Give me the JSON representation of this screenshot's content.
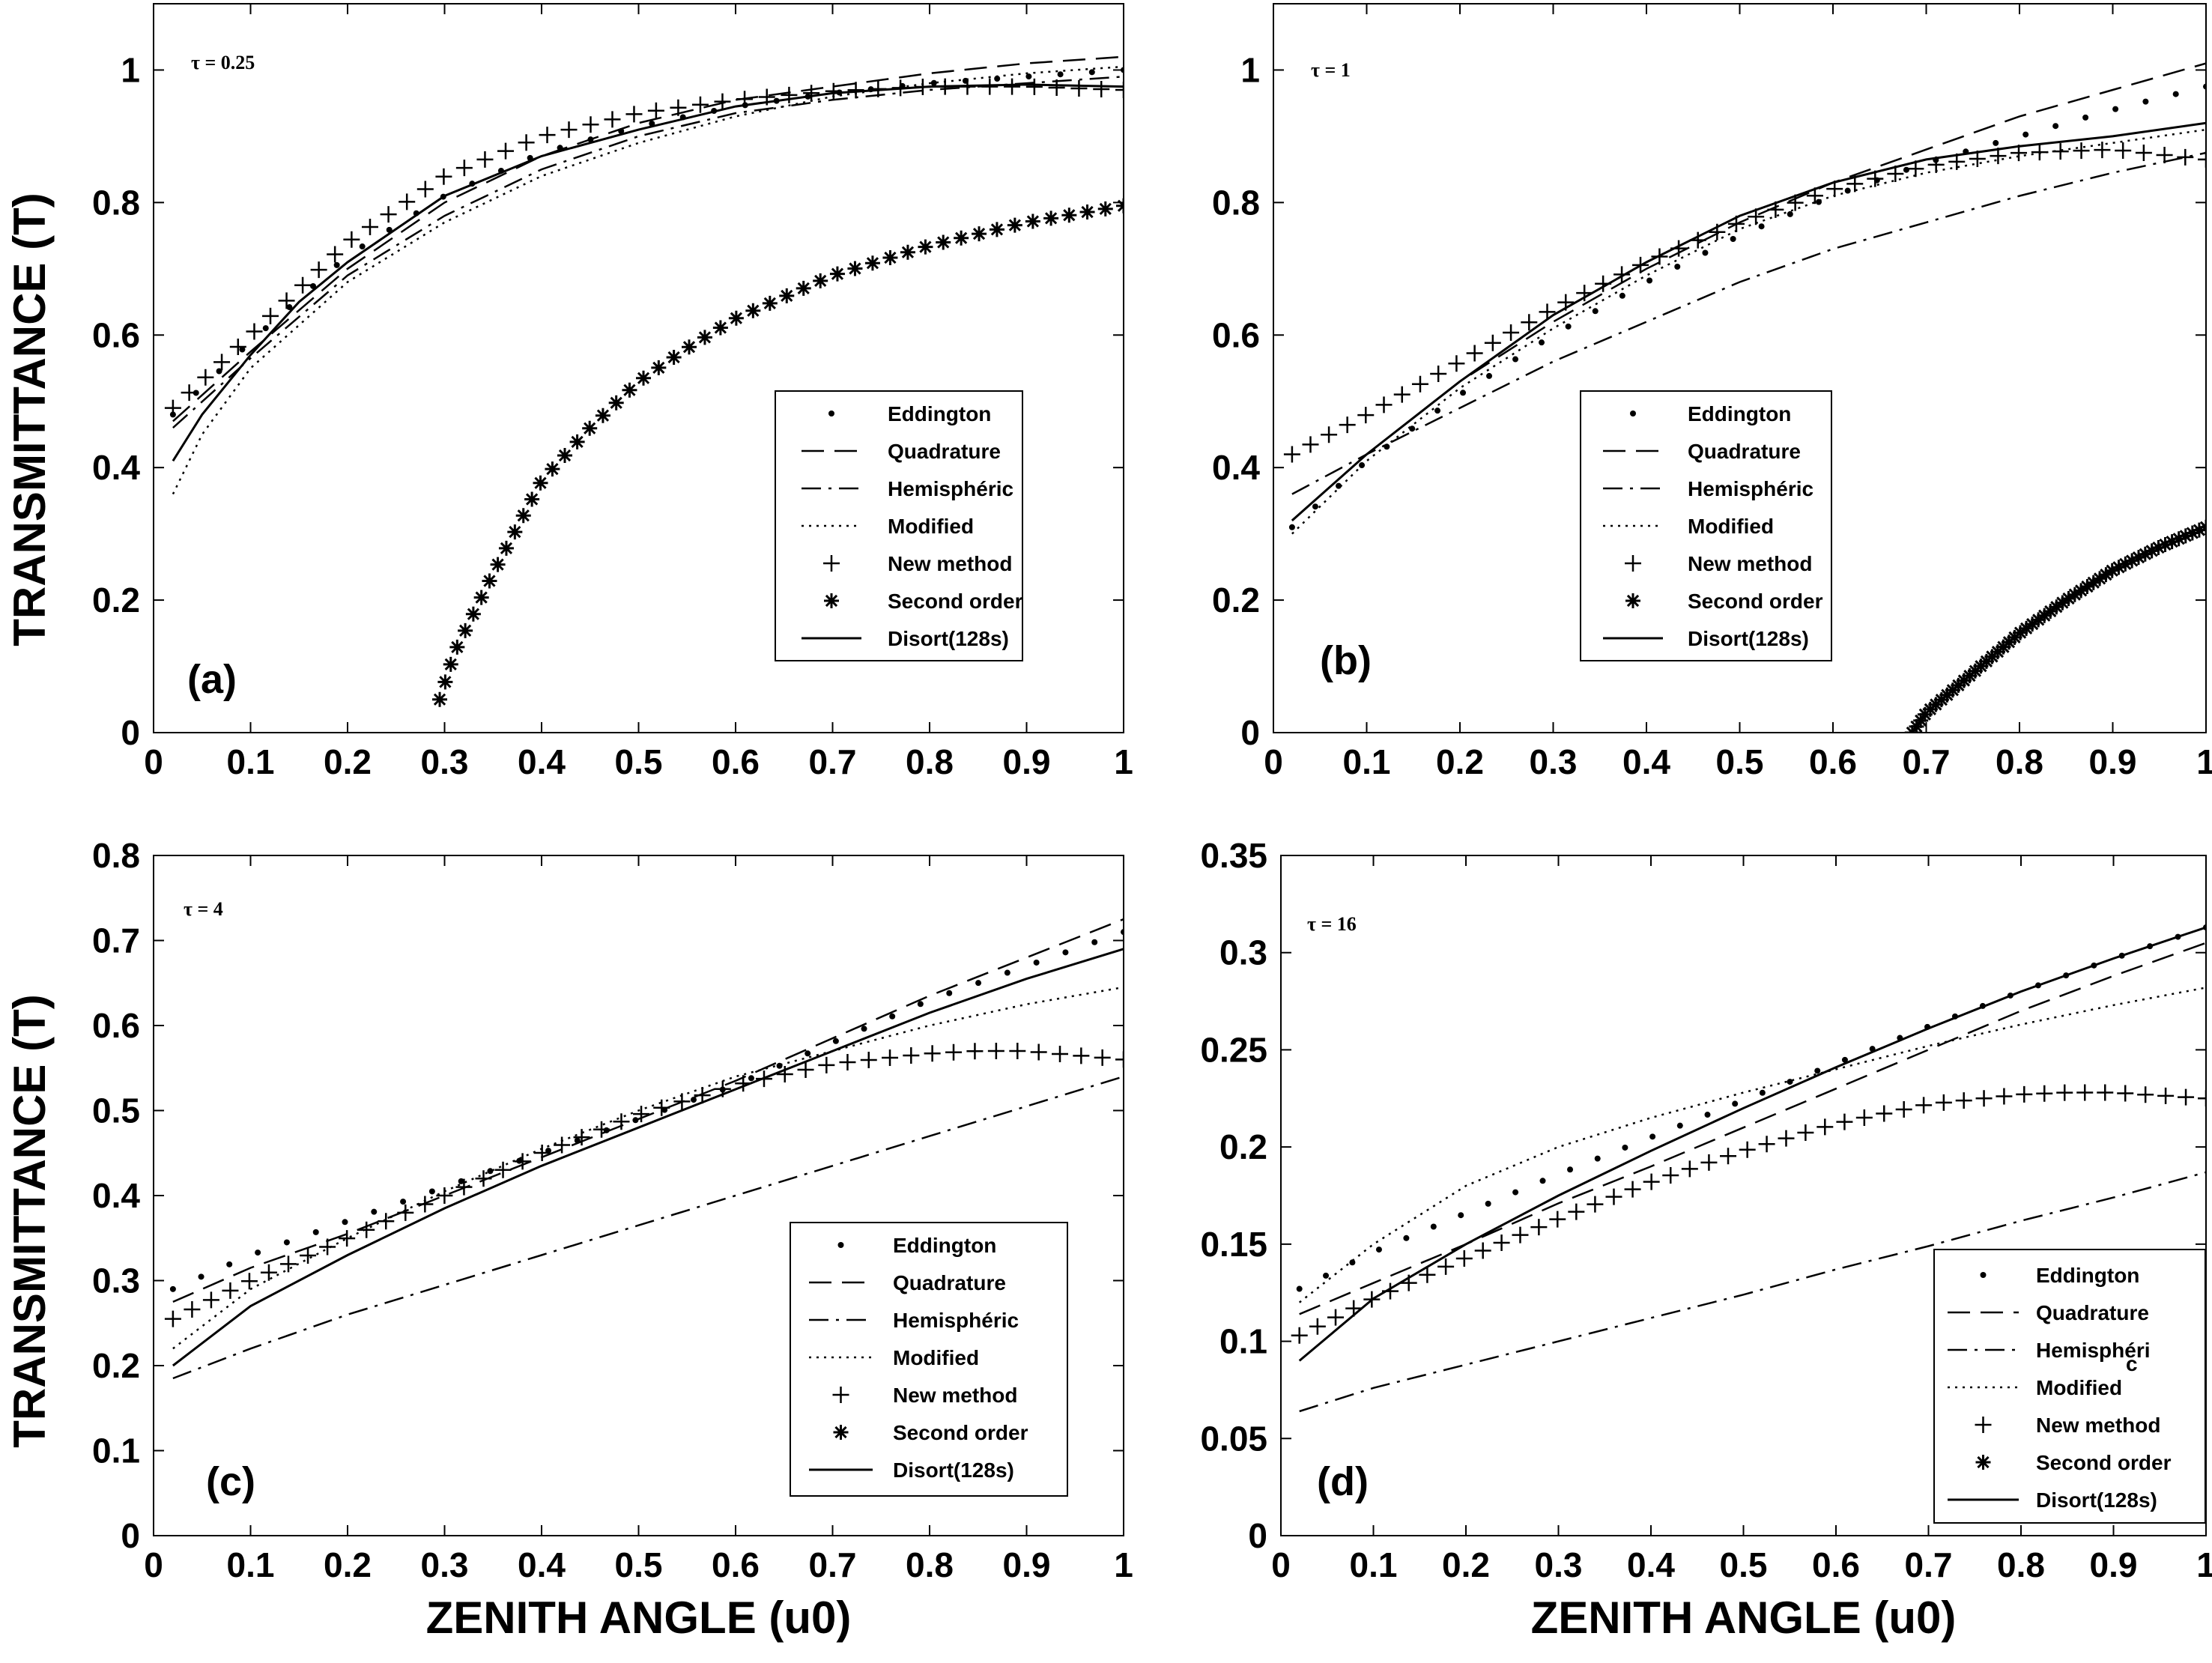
{
  "styles": {
    "Eddington": "dot",
    "Quadrature": "dash",
    "Hemisphéric": "dashdot",
    "Modified": "dotted",
    "New method": "plus",
    "Second order": "asterisk",
    "Disort(128s)": "solid"
  },
  "chart_data": [
    {
      "type": "line",
      "panel": "(a)",
      "tau_text": "τ = 0.25",
      "xlabel": "ZENITH ANGLE (u0)",
      "ylabel": "TRANSMITTANCE (T)",
      "xlim": [
        0,
        1
      ],
      "ylim": [
        0,
        1.1
      ],
      "xticks": [
        "0",
        "0.1",
        "0.2",
        "0.3",
        "0.4",
        "0.5",
        "0.6",
        "0.7",
        "0.8",
        "0.9",
        "1"
      ],
      "yticks": [
        "0",
        "0.2",
        "0.4",
        "0.6",
        "0.8",
        "1"
      ],
      "legend_placement": "right",
      "legend": [
        "Eddington",
        "Quadrature",
        "Hemisphéric",
        "Modified",
        "New method",
        "Second order",
        "Disort(128s)"
      ],
      "series": [
        {
          "name": "Eddington",
          "x": [
            0.02,
            0.1,
            0.2,
            0.3,
            0.4,
            0.5,
            0.6,
            0.7,
            0.8,
            0.9,
            1.0
          ],
          "y": [
            0.48,
            0.59,
            0.72,
            0.81,
            0.875,
            0.915,
            0.945,
            0.965,
            0.98,
            0.99,
            1.0
          ]
        },
        {
          "name": "Quadrature",
          "x": [
            0.02,
            0.1,
            0.2,
            0.3,
            0.4,
            0.5,
            0.6,
            0.7,
            0.8,
            0.9,
            1.0
          ],
          "y": [
            0.47,
            0.575,
            0.7,
            0.8,
            0.87,
            0.92,
            0.955,
            0.975,
            0.995,
            1.01,
            1.02
          ]
        },
        {
          "name": "Hemisphéric",
          "x": [
            0.02,
            0.1,
            0.2,
            0.3,
            0.4,
            0.5,
            0.6,
            0.7,
            0.8,
            0.9,
            1.0
          ],
          "y": [
            0.46,
            0.565,
            0.69,
            0.78,
            0.85,
            0.9,
            0.935,
            0.955,
            0.97,
            0.98,
            0.99
          ]
        },
        {
          "name": "Modified",
          "x": [
            0.02,
            0.05,
            0.1,
            0.2,
            0.3,
            0.4,
            0.5,
            0.6,
            0.7,
            0.8,
            0.9,
            1.0
          ],
          "y": [
            0.36,
            0.45,
            0.55,
            0.68,
            0.77,
            0.84,
            0.89,
            0.93,
            0.96,
            0.98,
            0.995,
            1.005
          ]
        },
        {
          "name": "New method",
          "x": [
            0.02,
            0.1,
            0.2,
            0.3,
            0.4,
            0.5,
            0.6,
            0.7,
            0.8,
            0.9,
            1.0
          ],
          "y": [
            0.49,
            0.6,
            0.74,
            0.84,
            0.9,
            0.935,
            0.955,
            0.968,
            0.975,
            0.975,
            0.97
          ]
        },
        {
          "name": "Second order",
          "x": [
            0.295,
            0.31,
            0.33,
            0.35,
            0.375,
            0.4,
            0.45,
            0.5,
            0.55,
            0.6,
            0.7,
            0.8,
            0.9,
            1.0
          ],
          "y": [
            0.05,
            0.12,
            0.18,
            0.24,
            0.31,
            0.38,
            0.46,
            0.53,
            0.58,
            0.625,
            0.69,
            0.735,
            0.77,
            0.795
          ]
        },
        {
          "name": "Disort(128s)",
          "x": [
            0.02,
            0.05,
            0.1,
            0.15,
            0.2,
            0.3,
            0.4,
            0.5,
            0.6,
            0.7,
            0.8,
            0.9,
            1.0
          ],
          "y": [
            0.41,
            0.48,
            0.57,
            0.65,
            0.71,
            0.81,
            0.87,
            0.91,
            0.945,
            0.965,
            0.975,
            0.978,
            0.975
          ]
        }
      ]
    },
    {
      "type": "line",
      "panel": "(b)",
      "tau_text": "τ = 1",
      "xlabel": "",
      "ylabel": "",
      "xlim": [
        0,
        1
      ],
      "ylim": [
        0,
        1.1
      ],
      "xticks": [
        "0",
        "0.1",
        "0.2",
        "0.3",
        "0.4",
        "0.5",
        "0.6",
        "0.7",
        "0.8",
        "0.9",
        "1"
      ],
      "yticks": [
        "0",
        "0.2",
        "0.4",
        "0.6",
        "0.8",
        "1"
      ],
      "legend_placement": "right",
      "legend": [
        "Eddington",
        "Quadrature",
        "Hemisphéric",
        "Modified",
        "New method",
        "Second order",
        "Disort(128s)"
      ],
      "series": [
        {
          "name": "Eddington",
          "x": [
            0.02,
            0.1,
            0.2,
            0.3,
            0.4,
            0.5,
            0.6,
            0.7,
            0.8,
            0.9,
            1.0
          ],
          "y": [
            0.31,
            0.41,
            0.51,
            0.6,
            0.68,
            0.75,
            0.81,
            0.86,
            0.9,
            0.94,
            0.975
          ]
        },
        {
          "name": "Quadrature",
          "x": [
            0.02,
            0.1,
            0.2,
            0.3,
            0.4,
            0.5,
            0.6,
            0.7,
            0.8,
            0.9,
            1.0
          ],
          "y": [
            0.32,
            0.42,
            0.53,
            0.62,
            0.7,
            0.77,
            0.83,
            0.88,
            0.93,
            0.97,
            1.01
          ]
        },
        {
          "name": "Hemisphéric",
          "x": [
            0.02,
            0.1,
            0.2,
            0.3,
            0.4,
            0.5,
            0.6,
            0.7,
            0.8,
            0.9,
            1.0
          ],
          "y": [
            0.36,
            0.42,
            0.49,
            0.56,
            0.62,
            0.68,
            0.73,
            0.77,
            0.81,
            0.845,
            0.875
          ]
        },
        {
          "name": "Modified",
          "x": [
            0.02,
            0.1,
            0.2,
            0.3,
            0.4,
            0.5,
            0.6,
            0.7,
            0.8,
            0.9,
            1.0
          ],
          "y": [
            0.3,
            0.41,
            0.52,
            0.61,
            0.69,
            0.76,
            0.81,
            0.845,
            0.87,
            0.89,
            0.91
          ]
        },
        {
          "name": "New method",
          "x": [
            0.02,
            0.1,
            0.2,
            0.3,
            0.4,
            0.5,
            0.6,
            0.7,
            0.8,
            0.9,
            1.0
          ],
          "y": [
            0.42,
            0.48,
            0.56,
            0.64,
            0.71,
            0.77,
            0.82,
            0.855,
            0.875,
            0.88,
            0.865
          ]
        },
        {
          "name": "Second order",
          "x": [
            0.685,
            0.7,
            0.75,
            0.8,
            0.85,
            0.9,
            0.95,
            1.0
          ],
          "y": [
            0.0,
            0.03,
            0.09,
            0.15,
            0.2,
            0.245,
            0.28,
            0.31
          ]
        },
        {
          "name": "Disort(128s)",
          "x": [
            0.02,
            0.1,
            0.2,
            0.3,
            0.4,
            0.5,
            0.6,
            0.7,
            0.8,
            0.9,
            1.0
          ],
          "y": [
            0.32,
            0.42,
            0.53,
            0.63,
            0.71,
            0.78,
            0.83,
            0.865,
            0.885,
            0.9,
            0.92
          ]
        }
      ]
    },
    {
      "type": "line",
      "panel": "(c)",
      "tau_text": "τ = 4",
      "xlabel": "ZENITH ANGLE (u0)",
      "ylabel": "TRANSMITTANCE (T)",
      "xlim": [
        0,
        1
      ],
      "ylim": [
        0,
        0.8
      ],
      "xticks": [
        "0",
        "0.1",
        "0.2",
        "0.3",
        "0.4",
        "0.5",
        "0.6",
        "0.7",
        "0.8",
        "0.9",
        "1"
      ],
      "yticks": [
        "0",
        "0.1",
        "0.2",
        "0.3",
        "0.4",
        "0.5",
        "0.6",
        "0.7",
        "0.8"
      ],
      "legend_placement": "bottom-right",
      "legend": [
        "Eddington",
        "Quadrature",
        "Hemisphéric",
        "Modified",
        "New method",
        "Second order",
        "Disort(128s)"
      ],
      "series": [
        {
          "name": "Eddington",
          "x": [
            0.02,
            0.1,
            0.2,
            0.3,
            0.4,
            0.5,
            0.6,
            0.7,
            0.8,
            0.9,
            1.0
          ],
          "y": [
            0.29,
            0.33,
            0.37,
            0.41,
            0.45,
            0.49,
            0.53,
            0.58,
            0.63,
            0.67,
            0.71
          ]
        },
        {
          "name": "Quadrature",
          "x": [
            0.02,
            0.1,
            0.2,
            0.3,
            0.4,
            0.5,
            0.6,
            0.7,
            0.8,
            0.9,
            1.0
          ],
          "y": [
            0.275,
            0.315,
            0.355,
            0.4,
            0.445,
            0.49,
            0.535,
            0.585,
            0.635,
            0.68,
            0.725
          ]
        },
        {
          "name": "Hemisphéric",
          "x": [
            0.02,
            0.1,
            0.2,
            0.3,
            0.4,
            0.5,
            0.6,
            0.7,
            0.8,
            0.9,
            1.0
          ],
          "y": [
            0.185,
            0.22,
            0.26,
            0.295,
            0.33,
            0.365,
            0.4,
            0.435,
            0.47,
            0.505,
            0.54
          ]
        },
        {
          "name": "Modified",
          "x": [
            0.02,
            0.1,
            0.2,
            0.3,
            0.4,
            0.5,
            0.6,
            0.7,
            0.8,
            0.9,
            1.0
          ],
          "y": [
            0.22,
            0.29,
            0.35,
            0.405,
            0.455,
            0.5,
            0.54,
            0.57,
            0.6,
            0.625,
            0.645
          ]
        },
        {
          "name": "New method",
          "x": [
            0.02,
            0.1,
            0.2,
            0.3,
            0.4,
            0.5,
            0.6,
            0.7,
            0.8,
            0.85,
            0.9,
            1.0
          ],
          "y": [
            0.255,
            0.3,
            0.35,
            0.4,
            0.45,
            0.495,
            0.53,
            0.555,
            0.567,
            0.57,
            0.57,
            0.56
          ]
        },
        {
          "name": "Second order",
          "x": [],
          "y": []
        },
        {
          "name": "Disort(128s)",
          "x": [
            0.02,
            0.1,
            0.2,
            0.3,
            0.4,
            0.5,
            0.6,
            0.7,
            0.8,
            0.9,
            1.0
          ],
          "y": [
            0.2,
            0.27,
            0.33,
            0.385,
            0.435,
            0.48,
            0.525,
            0.57,
            0.615,
            0.655,
            0.69
          ]
        }
      ]
    },
    {
      "type": "line",
      "panel": "(d)",
      "tau_text": "τ = 16",
      "xlabel": "ZENITH ANGLE (u0)",
      "ylabel": "",
      "xlim": [
        0,
        1
      ],
      "ylim": [
        0,
        0.35
      ],
      "xticks": [
        "0",
        "0.1",
        "0.2",
        "0.3",
        "0.4",
        "0.5",
        "0.6",
        "0.7",
        "0.8",
        "0.9",
        "1"
      ],
      "yticks": [
        "0",
        "0.05",
        "0.1",
        "0.15",
        "0.2",
        "0.25",
        "0.3",
        "0.35"
      ],
      "legend_placement": "bottom-right",
      "legend": [
        "Eddington",
        "Quadrature",
        "Hemisphéri",
        "Modified",
        "New method",
        "Second order",
        "Disort(128s)"
      ],
      "legend_note": "c",
      "series": [
        {
          "name": "Eddington",
          "x": [
            0.02,
            0.1,
            0.2,
            0.3,
            0.4,
            0.5,
            0.6,
            0.7,
            0.8,
            0.9,
            1.0
          ],
          "y": [
            0.127,
            0.146,
            0.166,
            0.186,
            0.205,
            0.224,
            0.243,
            0.262,
            0.28,
            0.297,
            0.313
          ]
        },
        {
          "name": "Quadrature",
          "x": [
            0.02,
            0.1,
            0.2,
            0.3,
            0.4,
            0.5,
            0.6,
            0.7,
            0.8,
            0.9,
            1.0
          ],
          "y": [
            0.114,
            0.13,
            0.15,
            0.171,
            0.19,
            0.21,
            0.23,
            0.25,
            0.27,
            0.288,
            0.305
          ]
        },
        {
          "name": "Hemisphéri",
          "x": [
            0.02,
            0.1,
            0.2,
            0.3,
            0.4,
            0.5,
            0.6,
            0.7,
            0.8,
            0.9,
            1.0
          ],
          "y": [
            0.064,
            0.076,
            0.088,
            0.1,
            0.112,
            0.124,
            0.137,
            0.149,
            0.162,
            0.174,
            0.187
          ]
        },
        {
          "name": "Modified",
          "x": [
            0.02,
            0.1,
            0.2,
            0.3,
            0.4,
            0.5,
            0.6,
            0.7,
            0.8,
            0.9,
            1.0
          ],
          "y": [
            0.12,
            0.15,
            0.18,
            0.2,
            0.215,
            0.228,
            0.24,
            0.252,
            0.263,
            0.273,
            0.282
          ]
        },
        {
          "name": "New method",
          "x": [
            0.02,
            0.1,
            0.2,
            0.3,
            0.4,
            0.5,
            0.6,
            0.7,
            0.8,
            0.85,
            0.9,
            1.0
          ],
          "y": [
            0.103,
            0.122,
            0.143,
            0.163,
            0.182,
            0.198,
            0.212,
            0.222,
            0.227,
            0.228,
            0.228,
            0.225
          ]
        },
        {
          "name": "Second order",
          "x": [],
          "y": []
        },
        {
          "name": "Disort(128s)",
          "x": [
            0.02,
            0.1,
            0.2,
            0.3,
            0.4,
            0.5,
            0.6,
            0.7,
            0.8,
            0.9,
            1.0
          ],
          "y": [
            0.09,
            0.122,
            0.15,
            0.175,
            0.198,
            0.22,
            0.241,
            0.261,
            0.28,
            0.297,
            0.313
          ]
        }
      ]
    }
  ]
}
